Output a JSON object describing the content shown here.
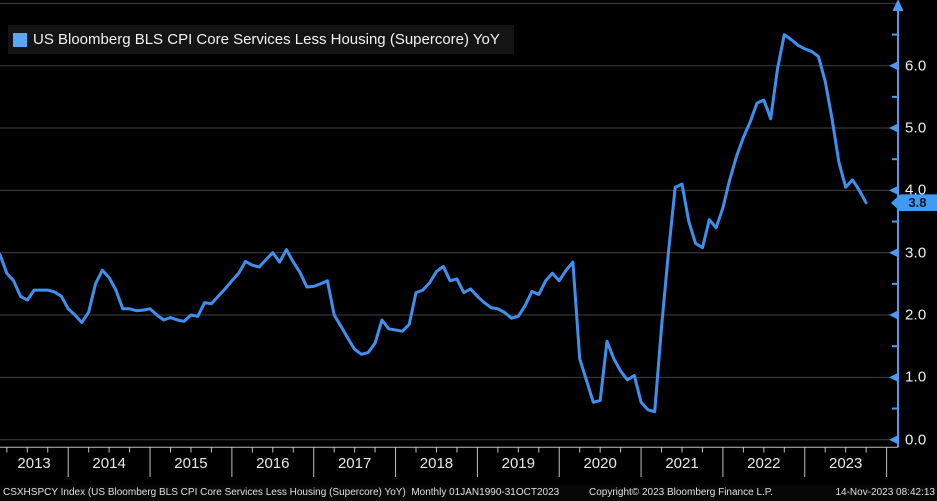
{
  "legend": {
    "label": "US Bloomberg BLS CPI Core Services Less Housing (Supercore) YoY"
  },
  "statusbar": {
    "left": "CSXHSPCY Index (US Bloomberg BLS CPI Core Services Less Housing (Supercore) YoY)  Monthly 01JAN1990-31OCT2023",
    "center": "Copyright© 2023 Bloomberg Finance L.P.",
    "right": "14-Nov-2023 08:42:13"
  },
  "colors": {
    "background": "#000000",
    "line": "#3f90ee",
    "legend_swatch": "#58a6f5",
    "axis_blue": "#4d9af0",
    "grid": "#424242",
    "x_axis": "#c0c0c0",
    "label_text": "#ececec",
    "tag_bg": "#4299f0",
    "tag_text": "#06182e"
  },
  "chart_data": {
    "type": "line",
    "title": "US Bloomberg BLS CPI Core Services Less Housing (Supercore) YoY",
    "frequency": "Monthly",
    "x_start": "2013-03",
    "x_end": "2023-10",
    "ylim": [
      0,
      7
    ],
    "grid": true,
    "legend_position": "top-left",
    "y_axis_side": "right",
    "y_tick_values": [
      0,
      1,
      2,
      3,
      4,
      5,
      6
    ],
    "y_tick_labels": [
      "0.0",
      "1.0",
      "2.0",
      "3.0",
      "4.0",
      "5.0",
      "6.0"
    ],
    "categories": [
      "2013",
      "2014",
      "2015",
      "2016",
      "2017",
      "2018",
      "2019",
      "2020",
      "2021",
      "2022",
      "2023"
    ],
    "last_value": 3.8,
    "last_value_label": "3.8",
    "series": [
      {
        "name": "US Bloomberg BLS CPI Core Services Less Housing (Supercore) YoY",
        "start_month": "2013-03",
        "values": [
          2.97,
          2.67,
          2.55,
          2.3,
          2.24,
          2.4,
          2.4,
          2.4,
          2.37,
          2.3,
          2.1,
          2.0,
          1.88,
          2.05,
          2.5,
          2.72,
          2.6,
          2.4,
          2.1,
          2.1,
          2.07,
          2.08,
          2.1,
          2.0,
          1.92,
          1.96,
          1.92,
          1.9,
          2.0,
          1.98,
          2.2,
          2.18,
          2.3,
          2.42,
          2.55,
          2.67,
          2.86,
          2.8,
          2.77,
          2.89,
          3.0,
          2.85,
          3.05,
          2.85,
          2.68,
          2.45,
          2.46,
          2.5,
          2.55,
          2.0,
          1.82,
          1.63,
          1.45,
          1.37,
          1.4,
          1.55,
          1.92,
          1.78,
          1.76,
          1.74,
          1.85,
          2.36,
          2.4,
          2.52,
          2.7,
          2.78,
          2.55,
          2.58,
          2.36,
          2.42,
          2.3,
          2.2,
          2.12,
          2.1,
          2.04,
          1.95,
          1.98,
          2.15,
          2.38,
          2.33,
          2.55,
          2.67,
          2.55,
          2.72,
          2.85,
          1.3,
          0.95,
          0.6,
          0.63,
          1.58,
          1.3,
          1.1,
          0.96,
          1.03,
          0.6,
          0.48,
          0.45,
          1.8,
          3.0,
          4.05,
          4.1,
          3.5,
          3.15,
          3.08,
          3.53,
          3.4,
          3.72,
          4.17,
          4.55,
          4.85,
          5.1,
          5.4,
          5.45,
          5.15,
          5.95,
          6.5,
          6.42,
          6.33,
          6.27,
          6.23,
          6.15,
          5.75,
          5.15,
          4.45,
          4.05,
          4.17,
          4.0,
          3.8
        ]
      }
    ]
  }
}
